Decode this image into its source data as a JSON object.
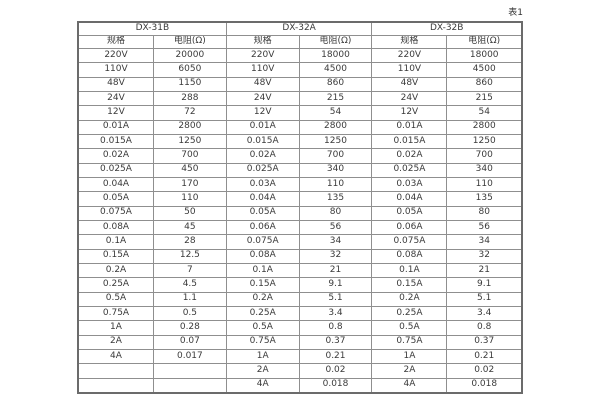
{
  "caption": "表1",
  "table": {
    "groups": [
      {
        "name": "DX-31B"
      },
      {
        "name": "DX-32A"
      },
      {
        "name": "DX-32B"
      }
    ],
    "subheaders": {
      "spec": "规格",
      "resistance": "电阻(Ω)"
    },
    "rows": [
      [
        "220V",
        "20000",
        "220V",
        "18000",
        "220V",
        "18000"
      ],
      [
        "110V",
        "6050",
        "110V",
        "4500",
        "110V",
        "4500"
      ],
      [
        "48V",
        "1150",
        "48V",
        "860",
        "48V",
        "860"
      ],
      [
        "24V",
        "288",
        "24V",
        "215",
        "24V",
        "215"
      ],
      [
        "12V",
        "72",
        "12V",
        "54",
        "12V",
        "54"
      ],
      [
        "0.01A",
        "2800",
        "0.01A",
        "2800",
        "0.01A",
        "2800"
      ],
      [
        "0.015A",
        "1250",
        "0.015A",
        "1250",
        "0.015A",
        "1250"
      ],
      [
        "0.02A",
        "700",
        "0.02A",
        "700",
        "0.02A",
        "700"
      ],
      [
        "0.025A",
        "450",
        "0.025A",
        "340",
        "0.025A",
        "340"
      ],
      [
        "0.04A",
        "170",
        "0.03A",
        "110",
        "0.03A",
        "110"
      ],
      [
        "0.05A",
        "110",
        "0.04A",
        "135",
        "0.04A",
        "135"
      ],
      [
        "0.075A",
        "50",
        "0.05A",
        "80",
        "0.05A",
        "80"
      ],
      [
        "0.08A",
        "45",
        "0.06A",
        "56",
        "0.06A",
        "56"
      ],
      [
        "0.1A",
        "28",
        "0.075A",
        "34",
        "0.075A",
        "34"
      ],
      [
        "0.15A",
        "12.5",
        "0.08A",
        "32",
        "0.08A",
        "32"
      ],
      [
        "0.2A",
        "7",
        "0.1A",
        "21",
        "0.1A",
        "21"
      ],
      [
        "0.25A",
        "4.5",
        "0.15A",
        "9.1",
        "0.15A",
        "9.1"
      ],
      [
        "0.5A",
        "1.1",
        "0.2A",
        "5.1",
        "0.2A",
        "5.1"
      ],
      [
        "0.75A",
        "0.5",
        "0.25A",
        "3.4",
        "0.25A",
        "3.4"
      ],
      [
        "1A",
        "0.28",
        "0.5A",
        "0.8",
        "0.5A",
        "0.8"
      ],
      [
        "2A",
        "0.07",
        "0.75A",
        "0.37",
        "0.75A",
        "0.37"
      ],
      [
        "4A",
        "0.017",
        "1A",
        "0.21",
        "1A",
        "0.21"
      ],
      [
        "",
        "",
        "2A",
        "0.02",
        "2A",
        "0.02"
      ],
      [
        "",
        "",
        "4A",
        "0.018",
        "4A",
        "0.018"
      ]
    ]
  }
}
